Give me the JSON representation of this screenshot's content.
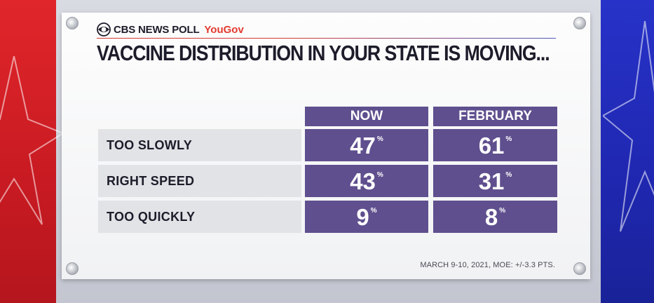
{
  "brand": {
    "network": "CBS NEWS POLL",
    "partner": "YouGov"
  },
  "title": "VACCINE DISTRIBUTION IN YOUR STATE IS MOVING...",
  "footnote": "MARCH 9-10, 2021, MOE: +/-3.3 PTS.",
  "colors": {
    "cell": "#5f4f8e",
    "label_bg": "#e2e3e6",
    "left_bg": "#d11f26",
    "right_bg": "#2330c0"
  },
  "chart_data": {
    "type": "table",
    "columns": [
      "NOW",
      "FEBRUARY"
    ],
    "rows": [
      "TOO SLOWLY",
      "RIGHT SPEED",
      "TOO QUICKLY"
    ],
    "unit": "%",
    "series": [
      {
        "name": "NOW",
        "values": [
          47,
          43,
          9
        ]
      },
      {
        "name": "FEBRUARY",
        "values": [
          61,
          31,
          8
        ]
      }
    ]
  }
}
